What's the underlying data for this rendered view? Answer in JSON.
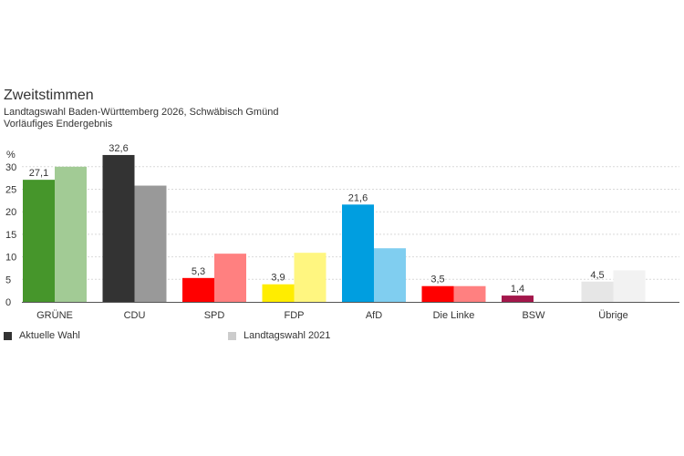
{
  "header": {
    "title": "Zweitstimmen",
    "subtitle1": "Landtagswahl Baden-Württemberg 2026, Schwäbisch Gmünd",
    "subtitle2": "Vorläufiges Endergebnis"
  },
  "legend": {
    "current": "Aktuelle Wahl",
    "previous": "Landtagswahl 2021",
    "current_color": "#333333",
    "previous_color": "#cccccc"
  },
  "chart_data": {
    "type": "bar",
    "ylabel": "%",
    "ylim": [
      0,
      32
    ],
    "yticks": [
      0,
      5,
      10,
      15,
      20,
      25,
      30
    ],
    "grid": true,
    "legend_position": "bottom-left",
    "categories": [
      "GRÜNE",
      "CDU",
      "SPD",
      "FDP",
      "AfD",
      "Die Linke",
      "BSW",
      "Übrige"
    ],
    "series": [
      {
        "name": "Aktuelle Wahl",
        "values": [
          27.1,
          32.6,
          5.3,
          3.9,
          21.6,
          3.5,
          1.4,
          4.5
        ],
        "labels": [
          "27,1",
          "32,6",
          "5,3",
          "3,9",
          "21,6",
          "3,5",
          "1,4",
          "4,5"
        ]
      },
      {
        "name": "Landtagswahl 2021",
        "values": [
          30.0,
          25.8,
          10.7,
          10.9,
          11.9,
          3.5,
          null,
          7.0
        ]
      }
    ],
    "colors_current": [
      "#46962b",
      "#333333",
      "#ff0000",
      "#ffed00",
      "#009ee0",
      "#ff0000",
      "#a3174b",
      "#e6e6e6"
    ],
    "colors_previous": [
      "#a2cb95",
      "#999999",
      "#ff8080",
      "#fff680",
      "#80cef0",
      "#ff8080",
      "#d08ba5",
      "#f2f2f2"
    ]
  }
}
